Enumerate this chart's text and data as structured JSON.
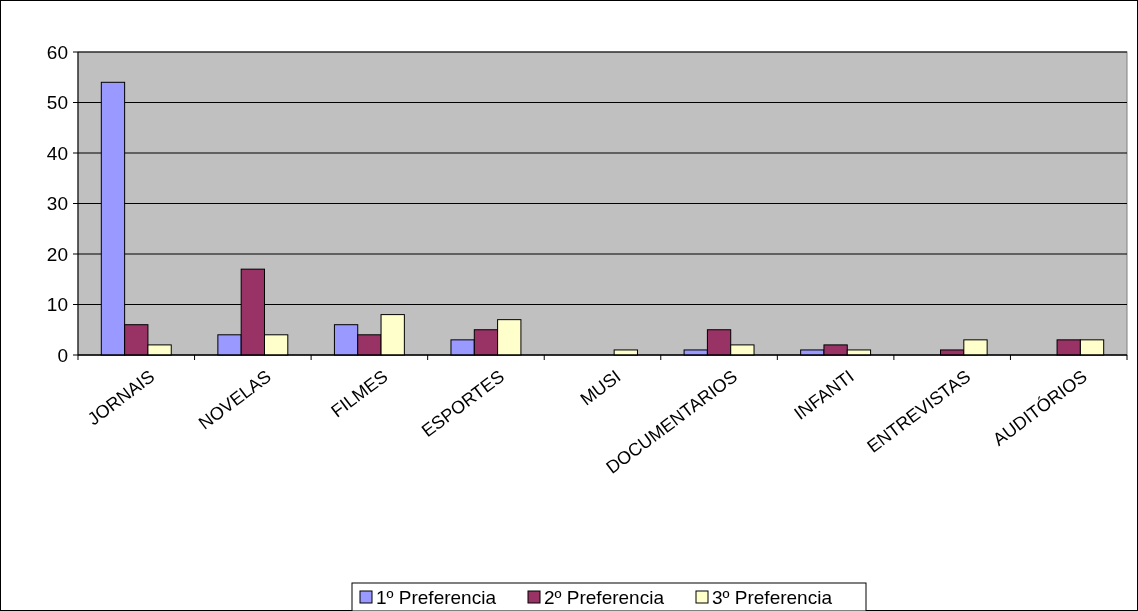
{
  "chart_data": {
    "type": "bar",
    "categories": [
      "JORNAIS",
      "NOVELAS",
      "FILMES",
      "ESPORTES",
      "MUSI",
      "DOCUMENTARIOS",
      "INFANTI",
      "ENTREVISTAS",
      "AUDITÓRIOS"
    ],
    "series": [
      {
        "name": "1º Preferencia",
        "color": "#9999ff",
        "values": [
          54,
          4,
          6,
          3,
          0,
          1,
          1,
          0,
          0
        ]
      },
      {
        "name": "2º Preferencia",
        "color": "#993366",
        "values": [
          6,
          17,
          4,
          5,
          0,
          5,
          2,
          1,
          3
        ]
      },
      {
        "name": "3º Preferencia",
        "color": "#ffffcc",
        "values": [
          2,
          4,
          8,
          7,
          1,
          2,
          1,
          3,
          3
        ]
      }
    ],
    "ylim": [
      0,
      60
    ],
    "yticks": [
      0,
      10,
      20,
      30,
      40,
      50,
      60
    ],
    "grid": "y",
    "legend": "bottom"
  }
}
